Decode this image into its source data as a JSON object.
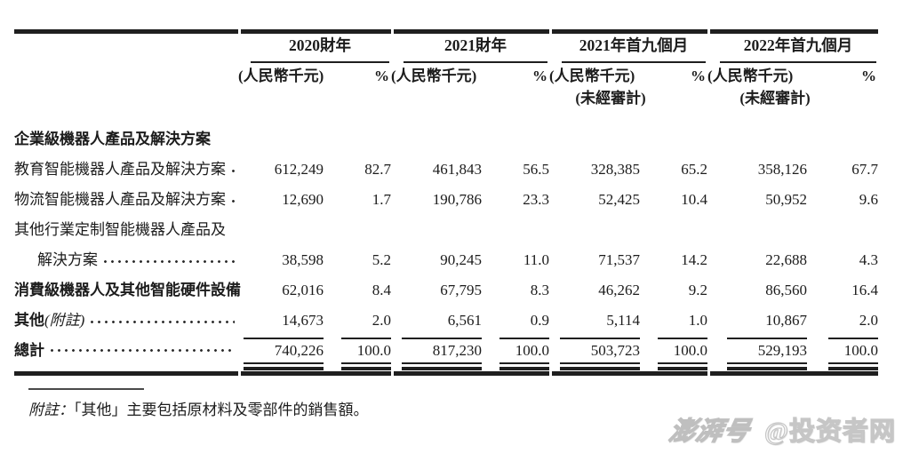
{
  "table": {
    "groups": [
      {
        "label": "2020財年",
        "unit": "(人民幣千元)",
        "pct_symbol": "%",
        "unaudited": ""
      },
      {
        "label": "2021財年",
        "unit": "(人民幣千元)",
        "pct_symbol": "%",
        "unaudited": ""
      },
      {
        "label": "2021年首九個月",
        "unit": "(人民幣千元)",
        "pct_symbol": "%",
        "unaudited": "(未經審計)"
      },
      {
        "label": "2022年首九個月",
        "unit": "(人民幣千元)",
        "pct_symbol": "%",
        "unaudited": "(未經審計)"
      }
    ],
    "rows": [
      {
        "label": "企業級機器人產品及解決方案",
        "bold": true,
        "leader": false,
        "indent": false,
        "suffix": "",
        "values": [
          "",
          "",
          "",
          "",
          "",
          "",
          "",
          ""
        ]
      },
      {
        "label": "教育智能機器人產品及解決方案",
        "bold": false,
        "leader": true,
        "indent": false,
        "suffix": "",
        "values": [
          "612,249",
          "82.7",
          "461,843",
          "56.5",
          "328,385",
          "65.2",
          "358,126",
          "67.7"
        ]
      },
      {
        "label": "物流智能機器人產品及解決方案",
        "bold": false,
        "leader": true,
        "indent": false,
        "suffix": "",
        "values": [
          "12,690",
          "1.7",
          "190,786",
          "23.3",
          "52,425",
          "10.4",
          "50,952",
          "9.6"
        ]
      },
      {
        "label": "其他行業定制智能機器人產品及",
        "bold": false,
        "leader": false,
        "indent": false,
        "suffix": "",
        "values": [
          "",
          "",
          "",
          "",
          "",
          "",
          "",
          ""
        ]
      },
      {
        "label": "解決方案",
        "bold": false,
        "leader": true,
        "indent": true,
        "suffix": "",
        "values": [
          "38,598",
          "5.2",
          "90,245",
          "11.0",
          "71,537",
          "14.2",
          "22,688",
          "4.3"
        ]
      },
      {
        "label": "消費級機器人及其他智能硬件設備",
        "bold": true,
        "leader": true,
        "indent": false,
        "suffix": "",
        "values": [
          "62,016",
          "8.4",
          "67,795",
          "8.3",
          "46,262",
          "9.2",
          "86,560",
          "16.4"
        ]
      },
      {
        "label": "其他",
        "bold": true,
        "leader": true,
        "indent": false,
        "suffix": "(附註)",
        "values": [
          "14,673",
          "2.0",
          "6,561",
          "0.9",
          "5,114",
          "1.0",
          "10,867",
          "2.0"
        ]
      }
    ],
    "total_row": {
      "label": "總計",
      "values": [
        "740,226",
        "100.0",
        "817,230",
        "100.0",
        "503,723",
        "100.0",
        "529,193",
        "100.0"
      ]
    }
  },
  "note": {
    "prefix": "附註：",
    "text": "「其他」主要包括原材料及零部件的銷售額。"
  },
  "watermark": {
    "logo": "澎湃号",
    "account": "@投资者网"
  },
  "colors": {
    "text": "#1c1c1c",
    "rule": "#1f1f1f",
    "watermark_stroke": "#c6c6c6"
  }
}
